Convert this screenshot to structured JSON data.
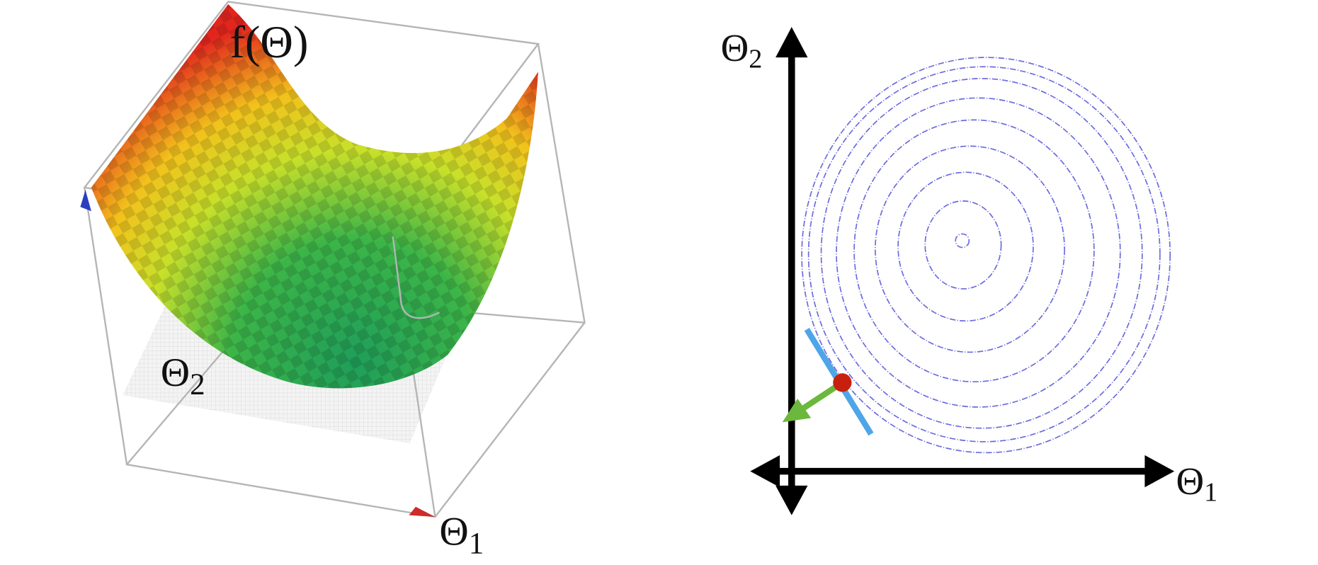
{
  "surface_plot": {
    "function_label": "f(Θ)",
    "theta2_label": {
      "symbol": "Θ",
      "subscript": "2"
    },
    "theta1_label": {
      "symbol": "Θ",
      "subscript": "1"
    }
  },
  "contour_plot": {
    "y_axis_label": {
      "symbol": "Θ",
      "subscript": "2"
    },
    "x_axis_label": {
      "symbol": "Θ",
      "subscript": "1"
    }
  }
}
